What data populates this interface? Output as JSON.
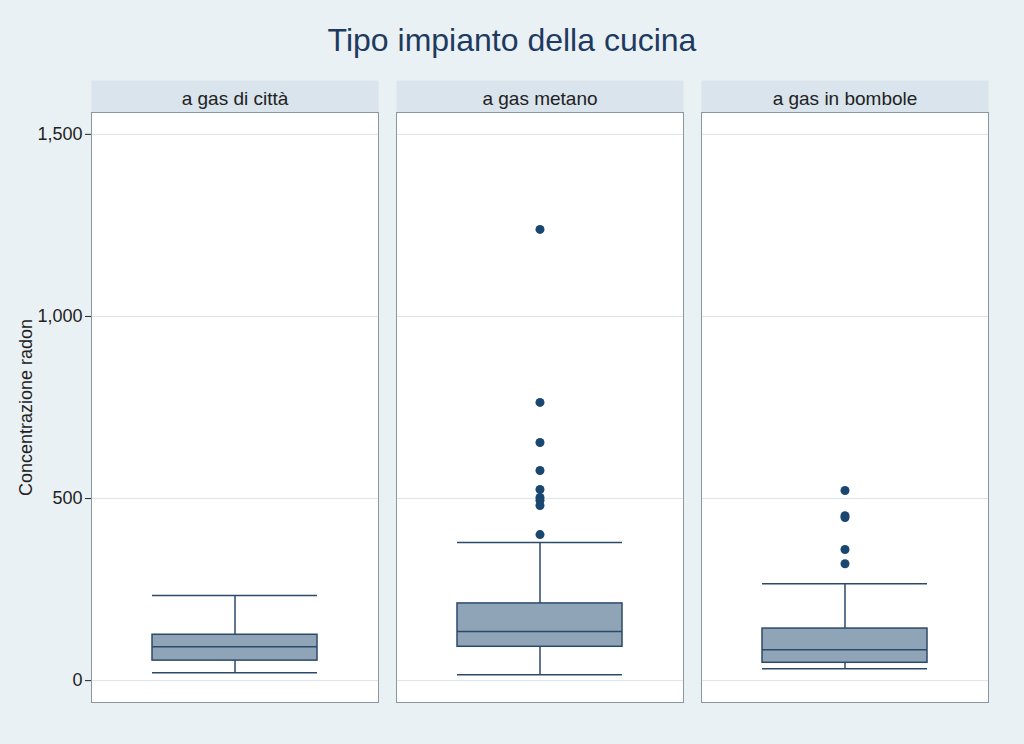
{
  "chart_data": {
    "type": "box",
    "title": "Tipo impianto della cucina",
    "ylabel": "Concentrazione radon",
    "categories": [
      "a gas di città",
      "a gas metano",
      "a gas in bombole"
    ],
    "boxes": [
      {
        "whisker_low": 22,
        "q1": 55,
        "median": 93,
        "q3": 126,
        "whisker_high": 234,
        "outliers": []
      },
      {
        "whisker_low": 16,
        "q1": 93,
        "median": 135,
        "q3": 212,
        "whisker_high": 379,
        "outliers": [
          1239,
          764,
          654,
          577,
          525,
          503,
          495,
          481,
          401
        ]
      },
      {
        "whisker_low": 33,
        "q1": 49,
        "median": 85,
        "q3": 143,
        "whisker_high": 266,
        "outliers": [
          522,
          453,
          448,
          360,
          321
        ]
      }
    ],
    "color": "#90a4b8",
    "ylim": [
      -60,
      1560
    ],
    "yticks": [
      0,
      500,
      {
        "value": 1000,
        "label": "1,000"
      },
      {
        "value": 1500,
        "label": "1,500"
      }
    ],
    "grid": true
  }
}
